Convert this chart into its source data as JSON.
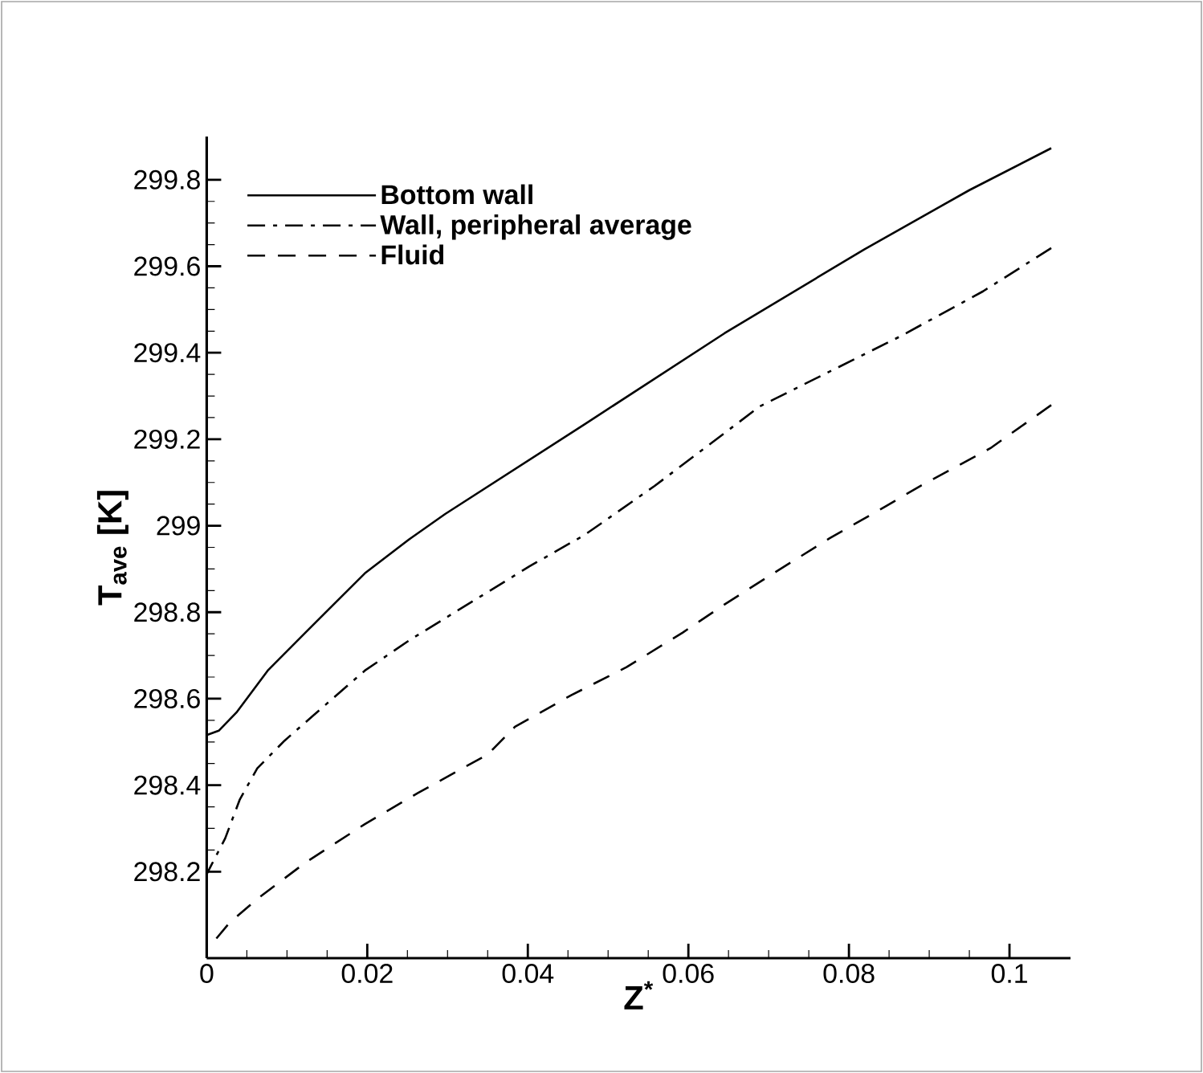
{
  "chart_data": {
    "type": "line",
    "xlabel": "Z$^{*}$",
    "ylabel": "T$_{ave}$ [K]",
    "xlim": [
      0,
      0.1076
    ],
    "ylim": [
      298,
      299.9
    ],
    "xticks": [
      0,
      0.02,
      0.04,
      0.06,
      0.08,
      0.1
    ],
    "yticks": [
      {
        "value": 298.2,
        "label": "298.2"
      },
      {
        "value": 298.4,
        "label": "298.4"
      },
      {
        "value": 298.6,
        "label": "298.6"
      },
      {
        "value": 298.8,
        "label": "298.8"
      },
      299,
      {
        "value": 299.2,
        "label": "299.2"
      },
      {
        "value": 299.4,
        "label": "299.4"
      },
      {
        "value": 299.6,
        "label": "299.6"
      },
      {
        "value": 299.8,
        "label": "299.8"
      }
    ],
    "legend": "top left",
    "grid": false,
    "series": [
      {
        "name": "Bottom wall",
        "color": "#000000",
        "line_style": "solid",
        "x": [
          0,
          0.0015,
          0.0037,
          0.0076,
          0.0123,
          0.0197,
          0.0254,
          0.0297,
          0.0471,
          0.0645,
          0.0819,
          0.095,
          0.1052
        ],
        "values": [
          298.516,
          298.526,
          298.568,
          298.665,
          298.753,
          298.89,
          298.971,
          299.027,
          299.235,
          299.445,
          299.639,
          299.776,
          299.873
        ]
      },
      {
        "name": "Wall, peripheral average",
        "color": "#000000",
        "line_style": "dashdot",
        "x": [
          0,
          0.0006,
          0.0023,
          0.0041,
          0.0063,
          0.0097,
          0.0132,
          0.0197,
          0.0254,
          0.0332,
          0.0402,
          0.0471,
          0.0558,
          0.0689,
          0.0863,
          0.0967,
          0.1052
        ],
        "values": [
          298.194,
          298.216,
          298.277,
          298.366,
          298.439,
          298.503,
          298.56,
          298.665,
          298.737,
          298.826,
          298.906,
          298.979,
          299.092,
          299.276,
          299.437,
          299.542,
          299.642
        ]
      },
      {
        "name": "Fluid",
        "color": "#000000",
        "line_style": "dashed",
        "x": [
          0.0002,
          0.0028,
          0.0063,
          0.0123,
          0.0197,
          0.0263,
          0.035,
          0.0384,
          0.0454,
          0.0523,
          0.0593,
          0.0645,
          0.0706,
          0.0776,
          0.0845,
          0.0889,
          0.0976,
          0.1052
        ],
        "values": [
          298.023,
          298.081,
          298.137,
          298.221,
          298.31,
          298.382,
          298.471,
          298.535,
          298.608,
          298.673,
          298.753,
          298.818,
          298.89,
          298.971,
          299.044,
          299.092,
          299.179,
          299.279
        ]
      }
    ]
  }
}
